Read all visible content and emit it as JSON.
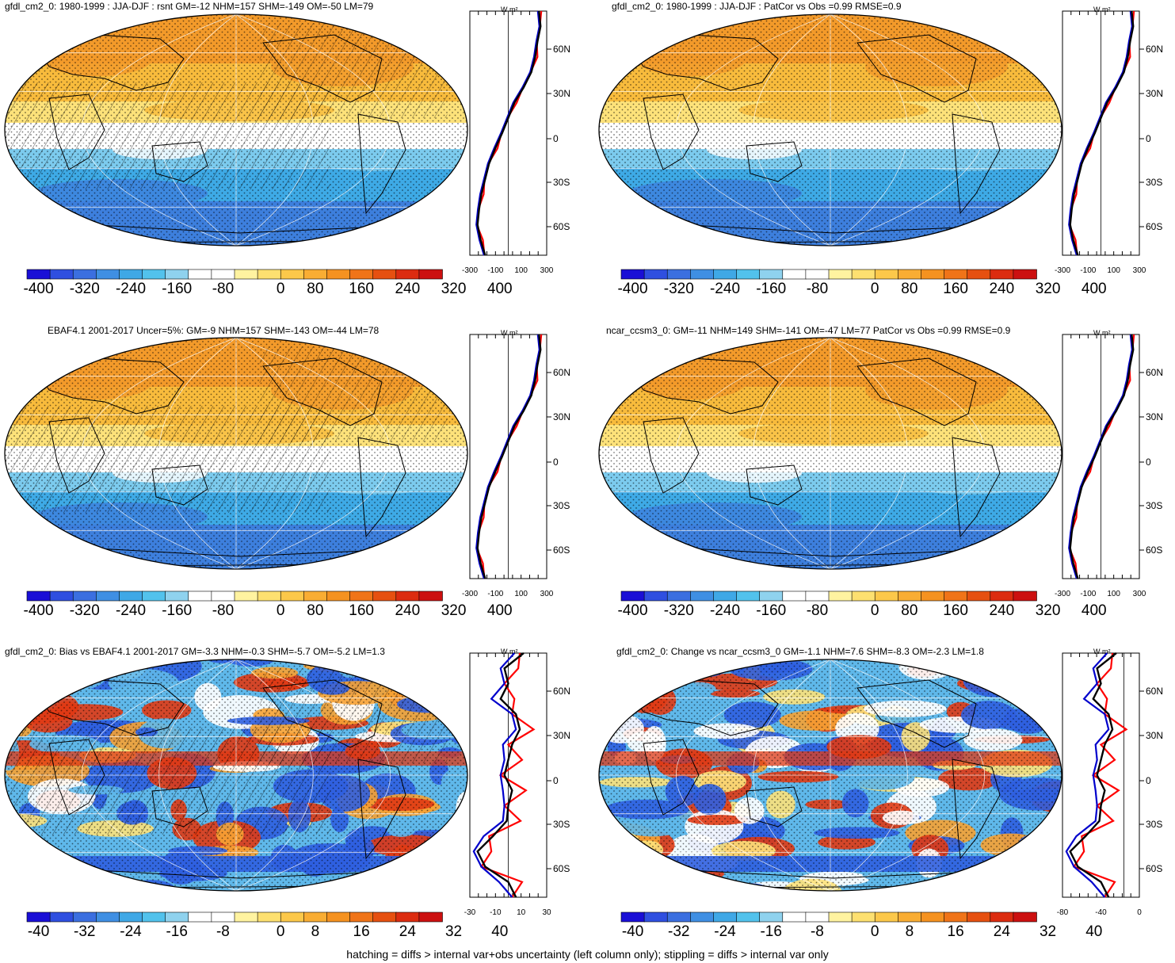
{
  "panels": [
    {
      "title": "gfdl_cm2_0: 1980-1999 : JJA-DJF : rsnt GM=-12 NHM=157 SHM=-149 OM=-50 LM=79",
      "kind": "clim",
      "hatch": true,
      "stipple": true,
      "colorbar_labels": [
        "-400",
        "-320",
        "-240",
        "-160",
        "-80",
        "0",
        "80",
        "160",
        "240",
        "320",
        "400"
      ],
      "profile_x_labels": [
        "-300",
        "-100",
        "100",
        "300"
      ],
      "profile_lat_labels": [
        "60N",
        "30N",
        "0",
        "30S",
        "60S"
      ],
      "profile_units": "W m²"
    },
    {
      "title": "gfdl_cm2_0: 1980-1999 : JJA-DJF : PatCor vs Obs =0.99 RMSE=0.9",
      "kind": "clim",
      "hatch": false,
      "stipple": true,
      "colorbar_labels": [
        "-400",
        "-320",
        "-240",
        "-160",
        "-80",
        "0",
        "80",
        "160",
        "240",
        "320",
        "400"
      ],
      "profile_x_labels": [
        "-300",
        "-100",
        "100",
        "300"
      ],
      "profile_lat_labels": [
        "60N",
        "30N",
        "0",
        "30S",
        "60S"
      ],
      "profile_units": "W m²"
    },
    {
      "title": "EBAF4.1 2001-2017 Uncer=5%: GM=-9 NHM=157 SHM=-143 OM=-44 LM=78",
      "kind": "clim",
      "hatch": true,
      "stipple": true,
      "colorbar_labels": [
        "-400",
        "-320",
        "-240",
        "-160",
        "-80",
        "0",
        "80",
        "160",
        "240",
        "320",
        "400"
      ],
      "profile_x_labels": [
        "-300",
        "-100",
        "100",
        "300"
      ],
      "profile_lat_labels": [
        "60N",
        "30N",
        "0",
        "30S",
        "60S"
      ],
      "profile_units": "W m²"
    },
    {
      "title": "ncar_ccsm3_0: GM=-11 NHM=149 SHM=-141 OM=-47 LM=77 PatCor vs Obs =0.99 RMSE=0.9",
      "kind": "clim",
      "hatch": false,
      "stipple": true,
      "colorbar_labels": [
        "-400",
        "-320",
        "-240",
        "-160",
        "-80",
        "0",
        "80",
        "160",
        "240",
        "320",
        "400"
      ],
      "profile_x_labels": [
        "-300",
        "-100",
        "100",
        "300"
      ],
      "profile_lat_labels": [
        "60N",
        "30N",
        "0",
        "30S",
        "60S"
      ],
      "profile_units": "W m²"
    },
    {
      "title": "gfdl_cm2_0: Bias vs EBAF4.1 2001-2017 GM=-3.3 NHM=-0.3 SHM=-5.7 OM=-5.2 LM=1.3",
      "kind": "diff",
      "hatch": true,
      "stipple": true,
      "colorbar_labels": [
        "-40",
        "-32",
        "-24",
        "-16",
        "-8",
        "0",
        "8",
        "16",
        "24",
        "32",
        "40"
      ],
      "profile_x_labels": [
        "-30",
        "-10",
        "10",
        "30"
      ],
      "profile_lat_labels": [
        "60N",
        "30N",
        "0",
        "30S",
        "60S"
      ],
      "profile_units": "W m²"
    },
    {
      "title": "gfdl_cm2_0: Change vs ncar_ccsm3_0 GM=-1.1 NHM=7.6 SHM=-8.3 OM=-2.3 LM=1.8",
      "kind": "diff",
      "hatch": false,
      "stipple": true,
      "colorbar_labels": [
        "-40",
        "-32",
        "-24",
        "-16",
        "-8",
        "0",
        "8",
        "16",
        "24",
        "32",
        "40"
      ],
      "profile_x_labels": [
        "-80",
        "-40",
        "0"
      ],
      "profile_lat_labels": [
        "60N",
        "30N",
        "0",
        "30S",
        "60S"
      ],
      "profile_units": "W m²"
    }
  ],
  "colorbar_colors": [
    "#1a0fd6",
    "#2f4fe0",
    "#3b6fe0",
    "#3f8fe3",
    "#3fa8e6",
    "#52c2ec",
    "#8fd2ee",
    "#ffffff",
    "#ffffff",
    "#fff3a0",
    "#fde070",
    "#fcc84a",
    "#f9ad33",
    "#f59220",
    "#f07418",
    "#e65010",
    "#dc2c10",
    "#cc1010"
  ],
  "map_palette": {
    "clim": {
      "north": "#f39a2a",
      "north_mid": "#f8bb3c",
      "tropic_n": "#fde27a",
      "equator": "#ffffff",
      "tropic_s": "#7ccbee",
      "south_mid": "#3eaae6",
      "south": "#3d7fdd"
    },
    "diff": {
      "blue": "#2f5fe0",
      "lightblue": "#5fb8ea",
      "white": "#ffffff",
      "yellow": "#fde27a",
      "orange": "#f7a233",
      "red": "#e03a14"
    }
  },
  "profile_colors": {
    "model": "#ff0000",
    "obs": "#0000cc",
    "mean": "#000000"
  },
  "footer": "hatching = diffs > internal var+obs uncertainty (left column only); stippling = diffs > internal var only"
}
